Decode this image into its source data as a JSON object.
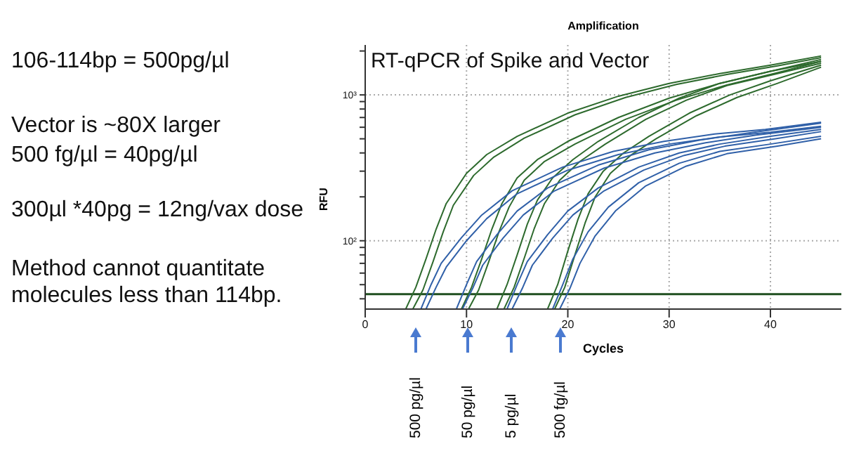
{
  "chart_data": {
    "type": "line",
    "title": "Amplification",
    "subtitle": "RT-qPCR of Spike and Vector",
    "xlabel": "Cycles",
    "ylabel": "RFU",
    "annotations": [
      "106-114bp = 500pg/µl",
      "Vector is ~80X larger",
      "500 fg/µl = 40pg/µl",
      "300µl *40pg = 12ng/vax dose",
      "Method cannot quantitate molecules less than 114bp.",
      "500 pg/µl",
      "50 pg/µl",
      "5 pg/µl",
      "500 fg/µl"
    ],
    "xlim": [
      0,
      47
    ],
    "xticks": [
      0,
      10,
      20,
      30,
      40
    ],
    "ylim": [
      34,
      2200
    ],
    "yticks": [
      {
        "value": 40,
        "label": null
      },
      {
        "value": 50,
        "label": null
      },
      {
        "value": 60,
        "label": null
      },
      {
        "value": 70,
        "label": null
      },
      {
        "value": 80,
        "label": null
      },
      {
        "value": 90,
        "label": null
      },
      {
        "value": 100,
        "label": "10²"
      },
      {
        "value": 200,
        "label": null
      },
      {
        "value": 300,
        "label": null
      },
      {
        "value": 400,
        "label": null
      },
      {
        "value": 500,
        "label": null
      },
      {
        "value": 600,
        "label": null
      },
      {
        "value": 700,
        "label": null
      },
      {
        "value": 800,
        "label": null
      },
      {
        "value": 900,
        "label": null
      },
      {
        "value": 1000,
        "label": "10³"
      },
      {
        "value": 2000,
        "label": null
      }
    ],
    "log": "y",
    "grid": true,
    "ref_lines": [
      {
        "axis": "y",
        "value": 43,
        "color": "#1f4f1f"
      }
    ],
    "series": [
      {
        "color": "#2d6a2d",
        "x": [
          4,
          5,
          6,
          7,
          8,
          10,
          12,
          15,
          20,
          25,
          30,
          35,
          40,
          45
        ],
        "values": [
          34,
          48,
          75,
          120,
          180,
          290,
          390,
          520,
          750,
          980,
          1200,
          1400,
          1600,
          1850
        ]
      },
      {
        "color": "#2d6a2d",
        "x": [
          4.7,
          5.7,
          6.7,
          7.7,
          8.7,
          10.7,
          12.7,
          15.7,
          20.7,
          25.7,
          30.7,
          35.7,
          40.7,
          45
        ],
        "values": [
          34,
          46,
          72,
          115,
          175,
          280,
          375,
          505,
          730,
          960,
          1180,
          1380,
          1580,
          1800
        ]
      },
      {
        "color": "#2d6a2d",
        "x": [
          9.5,
          10.5,
          11.5,
          12.5,
          13.5,
          15,
          17,
          20,
          25,
          30,
          35,
          40,
          45
        ],
        "values": [
          34,
          48,
          75,
          120,
          180,
          270,
          360,
          480,
          700,
          950,
          1200,
          1450,
          1750
        ]
      },
      {
        "color": "#2d6a2d",
        "x": [
          10.2,
          11.2,
          12.2,
          13.2,
          14.2,
          15.7,
          17.7,
          20.7,
          25.7,
          30.7,
          35.7,
          40.7,
          45
        ],
        "values": [
          34,
          46,
          72,
          115,
          170,
          260,
          350,
          460,
          680,
          920,
          1170,
          1420,
          1700
        ]
      },
      {
        "color": "#2d6a2d",
        "x": [
          13,
          14,
          15,
          16,
          17,
          18.5,
          20.5,
          23,
          27,
          31,
          35,
          40,
          45
        ],
        "values": [
          34,
          50,
          80,
          130,
          190,
          270,
          360,
          480,
          700,
          950,
          1200,
          1450,
          1700
        ]
      },
      {
        "color": "#2d6a2d",
        "x": [
          13.7,
          14.7,
          15.7,
          16.7,
          17.7,
          19.2,
          21.2,
          23.7,
          27.7,
          31.7,
          35.7,
          40.7,
          45
        ],
        "values": [
          34,
          48,
          76,
          122,
          180,
          260,
          350,
          460,
          680,
          920,
          1160,
          1400,
          1650
        ]
      },
      {
        "color": "#2d6a2d",
        "x": [
          18,
          19,
          20,
          21,
          22,
          23.5,
          25.5,
          28,
          32,
          36,
          40,
          45
        ],
        "values": [
          34,
          50,
          85,
          140,
          210,
          300,
          400,
          520,
          750,
          1000,
          1250,
          1600
        ]
      },
      {
        "color": "#2d6a2d",
        "x": [
          18.7,
          19.7,
          20.7,
          21.7,
          22.7,
          24.2,
          26.2,
          28.7,
          32.7,
          36.7,
          40.7,
          45
        ],
        "values": [
          34,
          48,
          80,
          132,
          200,
          290,
          385,
          500,
          720,
          960,
          1200,
          1550
        ]
      },
      {
        "color": "#3060a8",
        "x": [
          5.5,
          6.5,
          7.5,
          9.5,
          11.5,
          14.5,
          19.5,
          24.5,
          29.5,
          34.5,
          39.5,
          45
        ],
        "values": [
          34,
          50,
          70,
          105,
          150,
          220,
          320,
          410,
          480,
          540,
          580,
          650
        ]
      },
      {
        "color": "#3060a8",
        "x": [
          6,
          7,
          8,
          10,
          12,
          15,
          20,
          25,
          30,
          35,
          40,
          45
        ],
        "values": [
          34,
          48,
          66,
          100,
          142,
          210,
          305,
          390,
          460,
          515,
          555,
          610
        ]
      },
      {
        "color": "#3060a8",
        "x": [
          9,
          10,
          11,
          13,
          15,
          18,
          23,
          28,
          33,
          38,
          45
        ],
        "values": [
          34,
          50,
          72,
          110,
          160,
          230,
          330,
          420,
          490,
          550,
          640
        ]
      },
      {
        "color": "#3060a8",
        "x": [
          9.6,
          10.6,
          11.6,
          13.6,
          15.6,
          18.6,
          23.6,
          28.6,
          33.6,
          38.6,
          45
        ],
        "values": [
          34,
          47,
          68,
          104,
          150,
          218,
          315,
          400,
          470,
          530,
          600
        ]
      },
      {
        "color": "#3060a8",
        "x": [
          14,
          15,
          16,
          18,
          20,
          23,
          27,
          31,
          35,
          40,
          45
        ],
        "values": [
          34,
          50,
          72,
          110,
          160,
          230,
          320,
          400,
          460,
          520,
          580
        ]
      },
      {
        "color": "#3060a8",
        "x": [
          14.5,
          15.5,
          16.5,
          18.5,
          20.5,
          23.5,
          27.5,
          31.5,
          35.5,
          40.5,
          45
        ],
        "values": [
          34,
          47,
          68,
          104,
          150,
          218,
          305,
          385,
          445,
          500,
          560
        ]
      },
      {
        "color": "#3060a8",
        "x": [
          18.5,
          19.5,
          20.5,
          22,
          24,
          27,
          31,
          35,
          40,
          45
        ],
        "values": [
          34,
          50,
          75,
          115,
          170,
          250,
          340,
          410,
          460,
          520
        ]
      },
      {
        "color": "#3060a8",
        "x": [
          19.2,
          20.2,
          21.2,
          22.7,
          24.7,
          27.7,
          31.7,
          35.7,
          40.7,
          45
        ],
        "values": [
          34,
          47,
          70,
          108,
          160,
          238,
          325,
          395,
          445,
          500
        ]
      }
    ]
  }
}
